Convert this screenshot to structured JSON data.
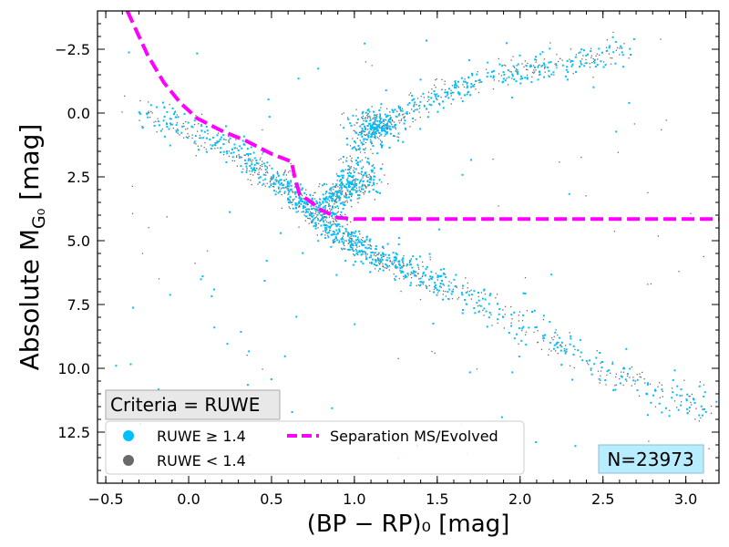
{
  "chart_data": {
    "type": "scatter",
    "title": "",
    "xlabel": "(BP − RP)₀ [mag]",
    "ylabel": "Absolute M",
    "ylabel_sub": "G₀",
    "ylabel_unit": " [mag]",
    "xlim": [
      -0.55,
      3.2
    ],
    "ylim": [
      14.5,
      -4.0
    ],
    "y_inverted": true,
    "grid": false,
    "x_ticks": [
      -0.5,
      0.0,
      0.5,
      1.0,
      1.5,
      2.0,
      2.5,
      3.0
    ],
    "x_tick_labels": [
      "−0.5",
      "0.0",
      "0.5",
      "1.0",
      "1.5",
      "2.0",
      "2.5",
      "3.0"
    ],
    "y_ticks": [
      -2.5,
      0.0,
      2.5,
      5.0,
      7.5,
      10.0,
      12.5
    ],
    "y_tick_labels": [
      "−2.5",
      "0.0",
      "2.5",
      "5.0",
      "7.5",
      "10.0",
      "12.5"
    ],
    "series": [
      {
        "name": "RUWE < 1.4",
        "kind": "scatter",
        "color": "#696969",
        "legend_label": "RUWE < 1.4"
      },
      {
        "name": "RUWE ≥ 1.4",
        "kind": "scatter",
        "color": "#00bfff",
        "legend_label": "RUWE ≥ 1.4"
      },
      {
        "name": "Separation MS/Evolved",
        "kind": "line",
        "style": "dashed",
        "color": "#ff00ff",
        "x": [
          -0.37,
          -0.25,
          -0.15,
          -0.05,
          0.05,
          0.2,
          0.35,
          0.5,
          0.62,
          0.64,
          0.67,
          0.72,
          0.8,
          0.9,
          1.0,
          2.0,
          3.2
        ],
        "y": [
          -4.0,
          -2.3,
          -1.2,
          -0.4,
          0.2,
          0.7,
          1.1,
          1.6,
          1.9,
          2.5,
          3.2,
          3.4,
          3.8,
          4.1,
          4.15,
          4.15,
          4.15
        ]
      }
    ],
    "legend": {
      "position": "bottom-left",
      "entries": [
        "RUWE ≥ 1.4",
        "RUWE < 1.4",
        "Separation MS/Evolved"
      ]
    },
    "annotations": {
      "criteria": "Criteria = RUWE",
      "count": "N=23973"
    }
  }
}
